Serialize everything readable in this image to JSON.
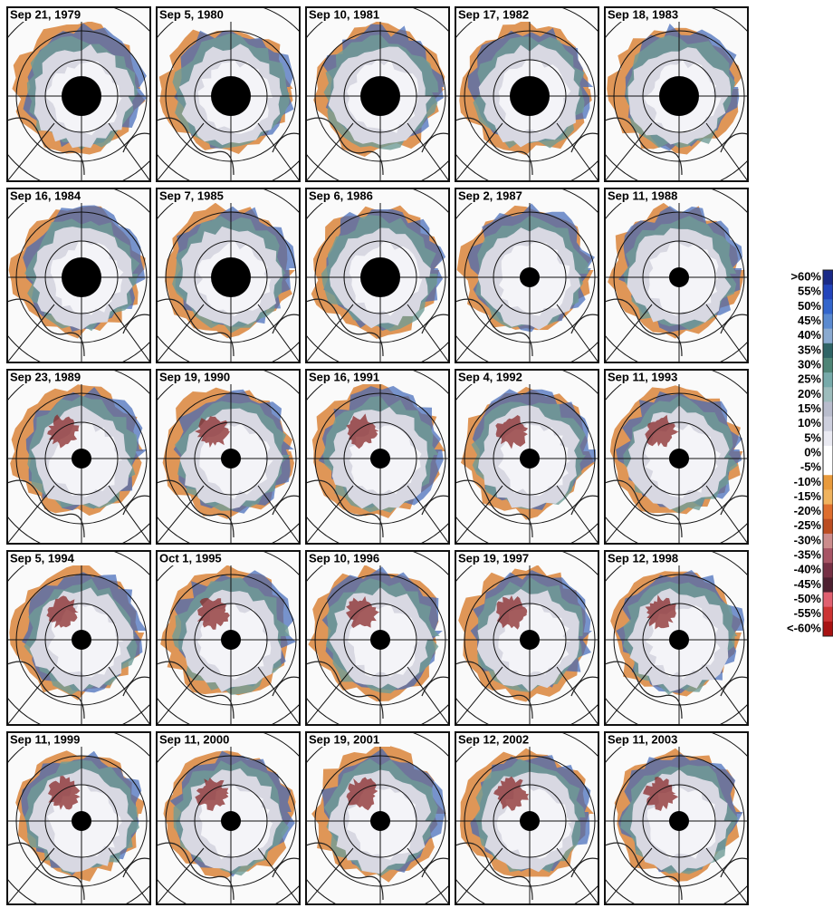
{
  "panels": [
    {
      "label": "Sep 21, 1979"
    },
    {
      "label": "Sep 5, 1980"
    },
    {
      "label": "Sep 10, 1981"
    },
    {
      "label": "Sep 17, 1982"
    },
    {
      "label": "Sep 18, 1983"
    },
    {
      "label": "Sep 16, 1984"
    },
    {
      "label": "Sep 7, 1985"
    },
    {
      "label": "Sep 6, 1986"
    },
    {
      "label": "Sep 2, 1987"
    },
    {
      "label": "Sep 11, 1988"
    },
    {
      "label": "Sep 23, 1989"
    },
    {
      "label": "Sep 19, 1990"
    },
    {
      "label": "Sep 16, 1991"
    },
    {
      "label": "Sep 4, 1992"
    },
    {
      "label": "Sep 11, 1993"
    },
    {
      "label": "Sep 5, 1994"
    },
    {
      "label": "Oct 1, 1995"
    },
    {
      "label": "Sep 10, 1996"
    },
    {
      "label": "Sep 19, 1997"
    },
    {
      "label": "Sep 12, 1998"
    },
    {
      "label": "Sep 11, 1999"
    },
    {
      "label": "Sep 11, 2000"
    },
    {
      "label": "Sep 19, 2001"
    },
    {
      "label": "Sep 12, 2002"
    },
    {
      "label": "Sep 11, 2003"
    }
  ],
  "legend": {
    "labels": [
      ">60%",
      "55%",
      "50%",
      "45%",
      "40%",
      "35%",
      "30%",
      "25%",
      "20%",
      "15%",
      "10%",
      "5%",
      "0%",
      "-5%",
      "-10%",
      "-15%",
      "-20%",
      "-25%",
      "-30%",
      "-35%",
      "-40%",
      "-45%",
      "-50%",
      "-55%",
      "<-60%"
    ]
  }
}
